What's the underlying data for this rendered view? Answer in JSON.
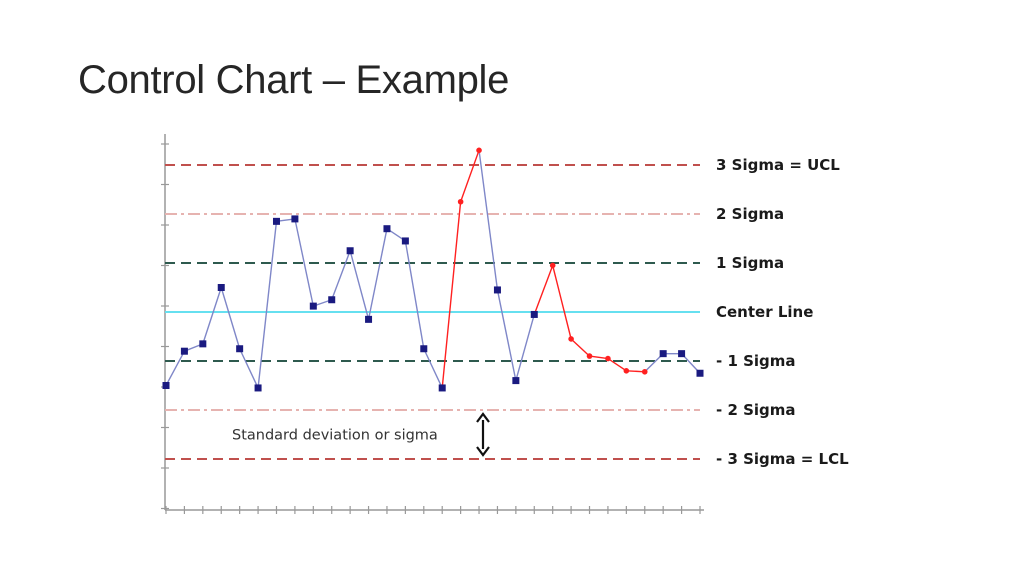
{
  "slide": {
    "title": "Control Chart – Example"
  },
  "chart_data": {
    "type": "line",
    "title": "",
    "xlabel": "",
    "ylabel": "",
    "grid": false,
    "ylim": [
      -3.6,
      3.6
    ],
    "x": [
      1,
      2,
      3,
      4,
      5,
      6,
      7,
      8,
      9,
      10,
      11,
      12,
      13,
      14,
      15,
      16,
      17,
      18,
      19,
      20,
      21,
      22,
      23,
      24,
      25,
      26,
      27,
      28,
      29,
      30
    ],
    "values": [
      -1.5,
      -0.8,
      -0.65,
      0.5,
      -0.75,
      -1.55,
      1.85,
      1.9,
      0.12,
      0.25,
      1.25,
      -0.15,
      1.7,
      1.45,
      -0.75,
      -1.55,
      2.25,
      3.3,
      0.45,
      -1.4,
      -0.05,
      0.95,
      -0.55,
      -0.9,
      -0.95,
      -1.2,
      -1.22,
      -0.85,
      -0.85,
      -1.25
    ],
    "out_of_control_points": [
      17,
      18,
      22,
      23,
      24,
      25,
      26,
      27
    ],
    "control_lines": [
      {
        "label": "3 Sigma = UCL",
        "value": 3,
        "color": "#c0504d",
        "style": "dashed"
      },
      {
        "label": "2 Sigma",
        "value": 2,
        "color": "#e6b3b0",
        "style": "dashdot"
      },
      {
        "label": "1 Sigma",
        "value": 1,
        "color": "#2e5a4e",
        "style": "dashed"
      },
      {
        "label": "Center Line",
        "value": 0,
        "color": "#66e0f0",
        "style": "solid"
      },
      {
        "label": "- 1 Sigma",
        "value": -1,
        "color": "#2e5a4e",
        "style": "dashed"
      },
      {
        "label": "- 2 Sigma",
        "value": -2,
        "color": "#e6b3b0",
        "style": "dashdot"
      },
      {
        "label": "- 3 Sigma = LCL",
        "value": -3,
        "color": "#c0504d",
        "style": "dashed"
      }
    ],
    "annotation": {
      "text": "Standard deviation or sigma",
      "from": -2,
      "to": -3
    },
    "colors": {
      "series": "#7f87c8",
      "marker": "#1a1a80",
      "out_of_control": "#ff2020",
      "axis": "#999999"
    }
  }
}
